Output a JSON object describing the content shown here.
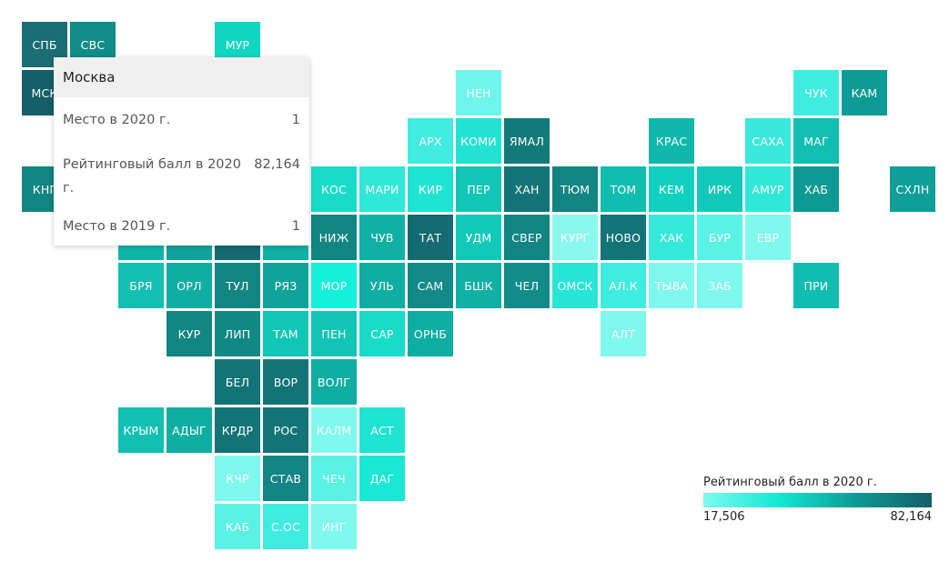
{
  "regions": [
    {
      "abbr": "СПБ",
      "c": 0,
      "r": 0,
      "color": "#1a6e73"
    },
    {
      "abbr": "СВС",
      "c": 1,
      "r": 0,
      "color": "#118c8a"
    },
    {
      "abbr": "МУР",
      "c": 4,
      "r": 0,
      "color": "#12d6c2"
    },
    {
      "abbr": "МСК",
      "c": 0,
      "r": 1,
      "color": "#145f68"
    },
    {
      "abbr": "НЕН",
      "c": 9,
      "r": 1,
      "color": "#6ff5ea"
    },
    {
      "abbr": "ЧУК",
      "c": 16,
      "r": 1,
      "color": "#40ece0"
    },
    {
      "abbr": "КАМ",
      "c": 17,
      "r": 1,
      "color": "#0e9b95"
    },
    {
      "abbr": "АРХ",
      "c": 8,
      "r": 2,
      "color": "#40ece0"
    },
    {
      "abbr": "КОМИ",
      "c": 9,
      "r": 2,
      "color": "#22e3d2"
    },
    {
      "abbr": "ЯМАЛ",
      "c": 10,
      "r": 2,
      "color": "#137a7a"
    },
    {
      "abbr": "КРАС",
      "c": 13,
      "r": 2,
      "color": "#0fb8ab"
    },
    {
      "abbr": "САХА",
      "c": 15,
      "r": 2,
      "color": "#3ae9dc"
    },
    {
      "abbr": "МАГ",
      "c": 16,
      "r": 2,
      "color": "#10bfb1"
    },
    {
      "abbr": "КНГ",
      "c": 0,
      "r": 3,
      "color": "#118582"
    },
    {
      "abbr": "КОС",
      "c": 6,
      "r": 3,
      "color": "#18dcc8"
    },
    {
      "abbr": "МАРИ",
      "c": 7,
      "r": 3,
      "color": "#30e8d8"
    },
    {
      "abbr": "КИР",
      "c": 8,
      "r": 3,
      "color": "#20e4d2"
    },
    {
      "abbr": "ПЕР",
      "c": 9,
      "r": 3,
      "color": "#12c6b5"
    },
    {
      "abbr": "ХАН",
      "c": 10,
      "r": 3,
      "color": "#137478"
    },
    {
      "abbr": "ТЮМ",
      "c": 11,
      "r": 3,
      "color": "#118582"
    },
    {
      "abbr": "ТОМ",
      "c": 12,
      "r": 3,
      "color": "#10bdb0"
    },
    {
      "abbr": "КЕМ",
      "c": 13,
      "r": 3,
      "color": "#12d0bf"
    },
    {
      "abbr": "ИРК",
      "c": 14,
      "r": 3,
      "color": "#12c8b8"
    },
    {
      "abbr": "АМУР",
      "c": 15,
      "r": 3,
      "color": "#30e8d8"
    },
    {
      "abbr": "ХАБ",
      "c": 16,
      "r": 3,
      "color": "#0e9a94"
    },
    {
      "abbr": "СХЛН",
      "c": 18,
      "r": 3,
      "color": "#0f9f98"
    },
    {
      "abbr": "",
      "c": 2,
      "r": 4,
      "color": "#10b5a9"
    },
    {
      "abbr": "",
      "c": 3,
      "r": 4,
      "color": "#10a39c"
    },
    {
      "abbr": "",
      "c": 4,
      "r": 4,
      "color": "#156a70"
    },
    {
      "abbr": "",
      "c": 5,
      "r": 4,
      "color": "#10b0a5"
    },
    {
      "abbr": "НИЖ",
      "c": 6,
      "r": 4,
      "color": "#118582"
    },
    {
      "abbr": "ЧУВ",
      "c": 7,
      "r": 4,
      "color": "#10b0a5"
    },
    {
      "abbr": "ТАТ",
      "c": 8,
      "r": 4,
      "color": "#146a70"
    },
    {
      "abbr": "УДМ",
      "c": 9,
      "r": 4,
      "color": "#12c8b8"
    },
    {
      "abbr": "СВЕР",
      "c": 10,
      "r": 4,
      "color": "#118582"
    },
    {
      "abbr": "КУРГ",
      "c": 11,
      "r": 4,
      "color": "#8af8ef"
    },
    {
      "abbr": "НОВО",
      "c": 12,
      "r": 4,
      "color": "#137478"
    },
    {
      "abbr": "ХАК",
      "c": 13,
      "r": 4,
      "color": "#35e9da"
    },
    {
      "abbr": "БУР",
      "c": 14,
      "r": 4,
      "color": "#5af2e5"
    },
    {
      "abbr": "ЕВР",
      "c": 15,
      "r": 4,
      "color": "#7ff8ee"
    },
    {
      "abbr": "БРЯ",
      "c": 2,
      "r": 5,
      "color": "#12c0b2"
    },
    {
      "abbr": "ОРЛ",
      "c": 3,
      "r": 5,
      "color": "#10ada2"
    },
    {
      "abbr": "ТУЛ",
      "c": 4,
      "r": 5,
      "color": "#118582"
    },
    {
      "abbr": "РЯЗ",
      "c": 5,
      "r": 5,
      "color": "#10a39c"
    },
    {
      "abbr": "МОР",
      "c": 6,
      "r": 5,
      "color": "#15f0dc"
    },
    {
      "abbr": "УЛЬ",
      "c": 7,
      "r": 5,
      "color": "#10ada2"
    },
    {
      "abbr": "САМ",
      "c": 8,
      "r": 5,
      "color": "#128a87"
    },
    {
      "abbr": "БШК",
      "c": 9,
      "r": 5,
      "color": "#10b0a5"
    },
    {
      "abbr": "ЧЕЛ",
      "c": 10,
      "r": 5,
      "color": "#128c88"
    },
    {
      "abbr": "ОМСК",
      "c": 11,
      "r": 5,
      "color": "#28e6d6"
    },
    {
      "abbr": "АЛ.К",
      "c": 12,
      "r": 5,
      "color": "#40ece0"
    },
    {
      "abbr": "ТЫВА",
      "c": 13,
      "r": 5,
      "color": "#7ff8ee"
    },
    {
      "abbr": "ЗАБ",
      "c": 14,
      "r": 5,
      "color": "#7ff8ee"
    },
    {
      "abbr": "ПРИ",
      "c": 16,
      "r": 5,
      "color": "#10bdb0"
    },
    {
      "abbr": "КУР",
      "c": 3,
      "r": 6,
      "color": "#118582"
    },
    {
      "abbr": "ЛИП",
      "c": 4,
      "r": 6,
      "color": "#118a86"
    },
    {
      "abbr": "ТАМ",
      "c": 5,
      "r": 6,
      "color": "#12c6b5"
    },
    {
      "abbr": "ПЕН",
      "c": 6,
      "r": 6,
      "color": "#12c4b4"
    },
    {
      "abbr": "САР",
      "c": 7,
      "r": 6,
      "color": "#18dcc8"
    },
    {
      "abbr": "ОРНБ",
      "c": 8,
      "r": 6,
      "color": "#10ada2"
    },
    {
      "abbr": "АЛТ",
      "c": 12,
      "r": 6,
      "color": "#7ff8ee"
    },
    {
      "abbr": "БЕЛ",
      "c": 4,
      "r": 7,
      "color": "#137478"
    },
    {
      "abbr": "ВОР",
      "c": 5,
      "r": 7,
      "color": "#137478"
    },
    {
      "abbr": "ВОЛГ",
      "c": 6,
      "r": 7,
      "color": "#10ada2"
    },
    {
      "abbr": "КРЫМ",
      "c": 2,
      "r": 8,
      "color": "#12c0b2"
    },
    {
      "abbr": "АДЫГ",
      "c": 3,
      "r": 8,
      "color": "#10ada2"
    },
    {
      "abbr": "КРДР",
      "c": 4,
      "r": 8,
      "color": "#137478"
    },
    {
      "abbr": "РОС",
      "c": 5,
      "r": 8,
      "color": "#137478"
    },
    {
      "abbr": "КАЛМ",
      "c": 6,
      "r": 8,
      "color": "#7ff8ee"
    },
    {
      "abbr": "АСТ",
      "c": 7,
      "r": 8,
      "color": "#20e4d2"
    },
    {
      "abbr": "КЧР",
      "c": 4,
      "r": 9,
      "color": "#7ff8ee"
    },
    {
      "abbr": "СТАВ",
      "c": 5,
      "r": 9,
      "color": "#128584"
    },
    {
      "abbr": "ЧЕЧ",
      "c": 6,
      "r": 9,
      "color": "#5af2e5"
    },
    {
      "abbr": "ДАГ",
      "c": 7,
      "r": 9,
      "color": "#18e8d4"
    },
    {
      "abbr": "КАБ",
      "c": 4,
      "r": 10,
      "color": "#5af2e5"
    },
    {
      "abbr": "С.ОС",
      "c": 5,
      "r": 10,
      "color": "#40ece0"
    },
    {
      "abbr": "ИНГ",
      "c": 6,
      "r": 10,
      "color": "#7ff8ee"
    }
  ],
  "tooltip": {
    "title": "Москва",
    "rows": [
      {
        "label": "Место в 2020 г.",
        "value": "1"
      },
      {
        "label": "Рейтинговый балл в 2020 г.",
        "value": "82,164"
      },
      {
        "label": "Место в 2019 г.",
        "value": "1"
      }
    ]
  },
  "legend": {
    "title": "Рейтинговый балл в 2020 г.",
    "min_label": "17,506",
    "max_label": "82,164",
    "colors": [
      "#7ffaf0",
      "#12e8d4",
      "#0d9a94",
      "#145f68"
    ]
  }
}
